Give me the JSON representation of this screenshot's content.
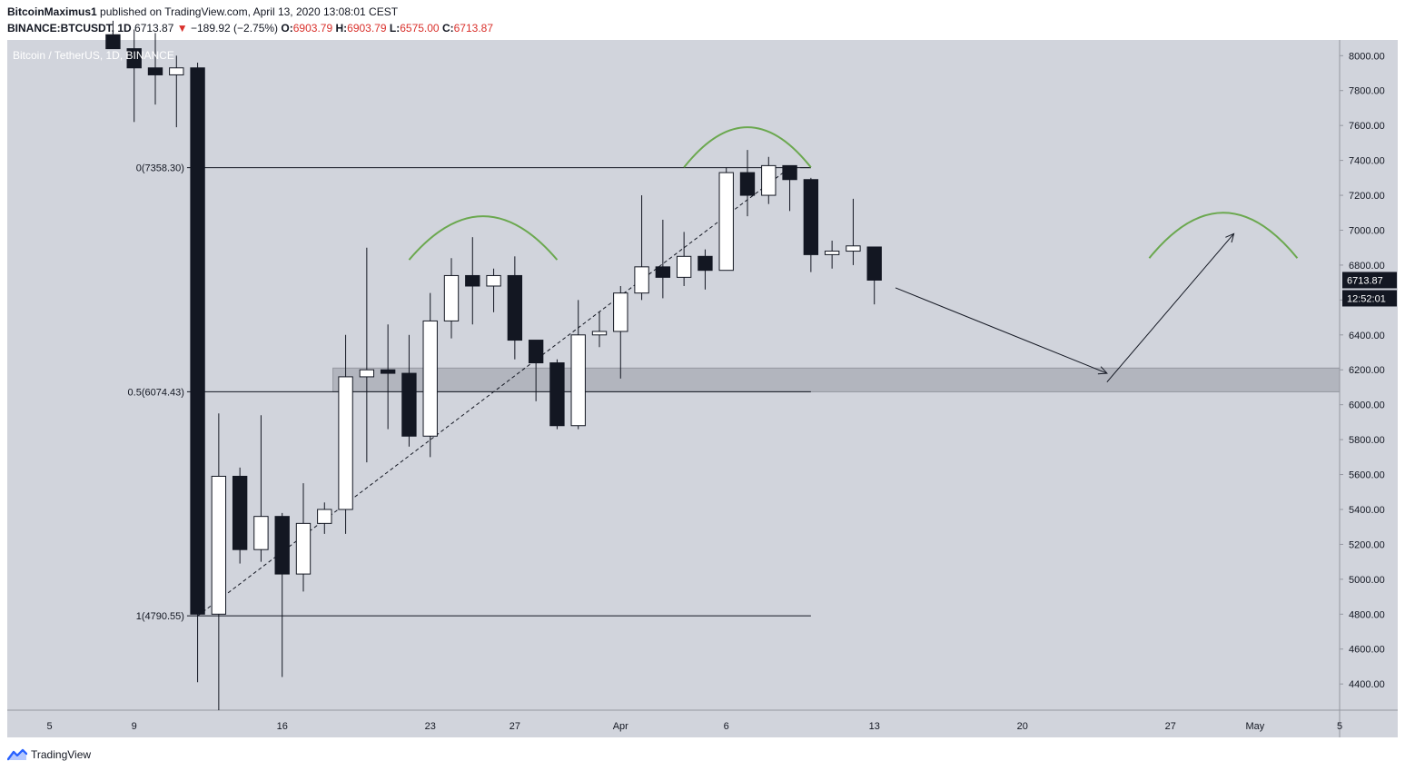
{
  "header": {
    "author": "BitcoinMaximus1",
    "published_text": "published on TradingView.com, April 13, 2020 13:08:01 CEST",
    "symbol": "BINANCE:BTCUSDT, 1D",
    "last": "6713.87",
    "down_arrow": "▼",
    "change": "−189.92 (−2.75%)",
    "o_label": "O:",
    "o_value": "6903.79",
    "h_label": "H:",
    "h_value": "6903.79",
    "l_label": "L:",
    "l_value": "6575.00",
    "c_label": "C:",
    "c_value": "6713.87"
  },
  "footer": {
    "brand": "TradingView",
    "icon": "tradingview-logo-icon"
  },
  "colors": {
    "background": "#d1d4dc",
    "bull_fill": "#ffffff",
    "bear_fill": "#131722",
    "arc": "#6ba84f",
    "zone": "#b2b5be",
    "price_tag": "#131722"
  },
  "chart_data": {
    "type": "candlestick",
    "title": "Bitcoin / TetherUS, 1D, BINANCE",
    "ylim": [
      4250,
      8090
    ],
    "y_ticks": [
      4400,
      4600,
      4800,
      5000,
      5200,
      5400,
      5600,
      5800,
      6000,
      6200,
      6400,
      6600,
      6800,
      7000,
      7200,
      7400,
      7600,
      7800,
      8000
    ],
    "y_tick_labels": [
      "4400.00",
      "4600.00",
      "4800.00",
      "5000.00",
      "5200.00",
      "5400.00",
      "5600.00",
      "5800.00",
      "6000.00",
      "6200.00",
      "6400.00",
      "6600.00",
      "6800.00",
      "7000.00",
      "7200.00",
      "7400.00",
      "7600.00",
      "7800.00",
      "8000.00"
    ],
    "x_range": [
      "2020-03-03",
      "2020-05-05"
    ],
    "x_ticks": [
      {
        "date": "2020-03-05",
        "label": "5"
      },
      {
        "date": "2020-03-09",
        "label": "9"
      },
      {
        "date": "2020-03-16",
        "label": "16"
      },
      {
        "date": "2020-03-23",
        "label": "23"
      },
      {
        "date": "2020-03-27",
        "label": "27"
      },
      {
        "date": "2020-04-01",
        "label": "Apr"
      },
      {
        "date": "2020-04-06",
        "label": "6"
      },
      {
        "date": "2020-04-13",
        "label": "13"
      },
      {
        "date": "2020-04-20",
        "label": "20"
      },
      {
        "date": "2020-04-27",
        "label": "27"
      },
      {
        "date": "2020-05-01",
        "label": "May"
      },
      {
        "date": "2020-05-05",
        "label": "5"
      }
    ],
    "candles": [
      {
        "date": "2020-03-08",
        "o": 8120,
        "h": 8200,
        "l": 8040,
        "c": 8040
      },
      {
        "date": "2020-03-09",
        "o": 8040,
        "h": 8150,
        "l": 7620,
        "c": 7930
      },
      {
        "date": "2020-03-10",
        "o": 7930,
        "h": 8130,
        "l": 7720,
        "c": 7890
      },
      {
        "date": "2020-03-11",
        "o": 7890,
        "h": 8000,
        "l": 7590,
        "c": 7930
      },
      {
        "date": "2020-03-12",
        "o": 7930,
        "h": 7960,
        "l": 4410,
        "c": 4800
      },
      {
        "date": "2020-03-13",
        "o": 4800,
        "h": 5950,
        "l": 4250,
        "c": 5590
      },
      {
        "date": "2020-03-14",
        "o": 5590,
        "h": 5640,
        "l": 5090,
        "c": 5170
      },
      {
        "date": "2020-03-15",
        "o": 5170,
        "h": 5940,
        "l": 5100,
        "c": 5360
      },
      {
        "date": "2020-03-16",
        "o": 5360,
        "h": 5380,
        "l": 4440,
        "c": 5030
      },
      {
        "date": "2020-03-17",
        "o": 5030,
        "h": 5550,
        "l": 4930,
        "c": 5320
      },
      {
        "date": "2020-03-18",
        "o": 5320,
        "h": 5440,
        "l": 5260,
        "c": 5400
      },
      {
        "date": "2020-03-19",
        "o": 5400,
        "h": 6400,
        "l": 5260,
        "c": 6160
      },
      {
        "date": "2020-03-20",
        "o": 6160,
        "h": 6900,
        "l": 5670,
        "c": 6200
      },
      {
        "date": "2020-03-21",
        "o": 6200,
        "h": 6460,
        "l": 5860,
        "c": 6180
      },
      {
        "date": "2020-03-22",
        "o": 6180,
        "h": 6400,
        "l": 5760,
        "c": 5820
      },
      {
        "date": "2020-03-23",
        "o": 5820,
        "h": 6640,
        "l": 5700,
        "c": 6480
      },
      {
        "date": "2020-03-24",
        "o": 6480,
        "h": 6840,
        "l": 6380,
        "c": 6740
      },
      {
        "date": "2020-03-25",
        "o": 6740,
        "h": 6960,
        "l": 6460,
        "c": 6680
      },
      {
        "date": "2020-03-26",
        "o": 6680,
        "h": 6780,
        "l": 6530,
        "c": 6740
      },
      {
        "date": "2020-03-27",
        "o": 6740,
        "h": 6850,
        "l": 6260,
        "c": 6370
      },
      {
        "date": "2020-03-28",
        "o": 6370,
        "h": 6370,
        "l": 6020,
        "c": 6240
      },
      {
        "date": "2020-03-29",
        "o": 6240,
        "h": 6260,
        "l": 5860,
        "c": 5880
      },
      {
        "date": "2020-03-30",
        "o": 5880,
        "h": 6600,
        "l": 5860,
        "c": 6400
      },
      {
        "date": "2020-03-31",
        "o": 6400,
        "h": 6530,
        "l": 6330,
        "c": 6420
      },
      {
        "date": "2020-04-01",
        "o": 6420,
        "h": 6680,
        "l": 6150,
        "c": 6640
      },
      {
        "date": "2020-04-02",
        "o": 6640,
        "h": 7200,
        "l": 6600,
        "c": 6790
      },
      {
        "date": "2020-04-03",
        "o": 6790,
        "h": 7060,
        "l": 6610,
        "c": 6730
      },
      {
        "date": "2020-04-04",
        "o": 6730,
        "h": 6990,
        "l": 6680,
        "c": 6850
      },
      {
        "date": "2020-04-05",
        "o": 6850,
        "h": 6890,
        "l": 6660,
        "c": 6770
      },
      {
        "date": "2020-04-06",
        "o": 6770,
        "h": 7360,
        "l": 6770,
        "c": 7330
      },
      {
        "date": "2020-04-07",
        "o": 7330,
        "h": 7460,
        "l": 7080,
        "c": 7200
      },
      {
        "date": "2020-04-08",
        "o": 7200,
        "h": 7420,
        "l": 7150,
        "c": 7370
      },
      {
        "date": "2020-04-09",
        "o": 7370,
        "h": 7370,
        "l": 7110,
        "c": 7290
      },
      {
        "date": "2020-04-10",
        "o": 7290,
        "h": 7300,
        "l": 6760,
        "c": 6860
      },
      {
        "date": "2020-04-11",
        "o": 6860,
        "h": 6940,
        "l": 6780,
        "c": 6880
      },
      {
        "date": "2020-04-12",
        "o": 6880,
        "h": 7180,
        "l": 6800,
        "c": 6910
      },
      {
        "date": "2020-04-13",
        "o": 6903.79,
        "h": 6903.79,
        "l": 6575.0,
        "c": 6713.87
      }
    ],
    "fib_levels": [
      {
        "ratio": "0",
        "value": 7358.3,
        "label": "0(7358.30)"
      },
      {
        "ratio": "0.5",
        "value": 6074.43,
        "label": "0.5(6074.43)"
      },
      {
        "ratio": "1",
        "value": 4790.55,
        "label": "1(4790.55)"
      }
    ],
    "fib_line_end": "2020-04-10",
    "support_zone": {
      "from": 6074,
      "to": 6210,
      "start": "2020-03-19"
    },
    "trend_line": [
      {
        "date": "2020-03-12",
        "price": 4790
      },
      {
        "date": "2020-04-09",
        "price": 7358
      }
    ],
    "projection_arrows": [
      [
        {
          "date": "2020-04-14",
          "price": 6670
        },
        {
          "date": "2020-04-24",
          "price": 6180
        }
      ],
      [
        {
          "date": "2020-04-24",
          "price": 6130
        },
        {
          "date": "2020-04-30",
          "price": 6980
        }
      ]
    ],
    "arcs": [
      {
        "from": "2020-03-22",
        "to": "2020-03-29",
        "base": 6830,
        "peak": 7080
      },
      {
        "from": "2020-04-04",
        "to": "2020-04-10",
        "base": 7360,
        "peak": 7590
      },
      {
        "from": "2020-04-26",
        "to": "2020-05-03",
        "base": 6840,
        "peak": 7100
      }
    ],
    "last_price": {
      "value": 6713.87,
      "label": "6713.87",
      "countdown": "12:52:01"
    }
  }
}
